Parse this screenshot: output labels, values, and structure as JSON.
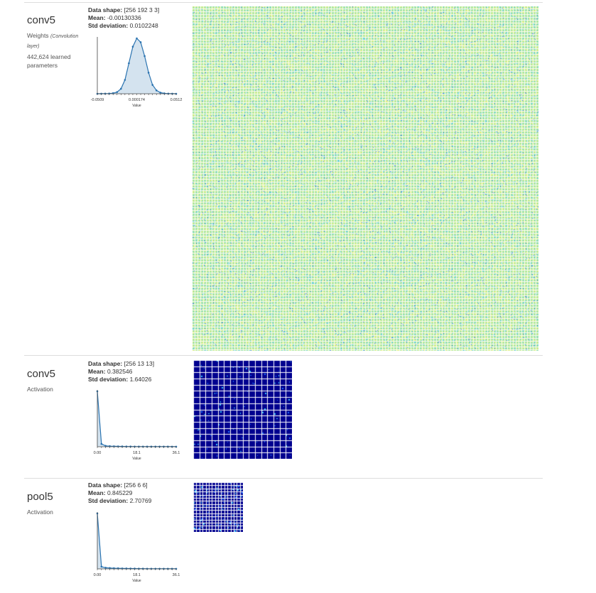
{
  "layers": [
    {
      "name": "conv5",
      "type": "Weights",
      "type_note": "(Convolution layer)",
      "params": "442,624 learned parameters",
      "stats": {
        "shape_label": "Data shape:",
        "shape": "[256 192 3 3]",
        "mean_label": "Mean:",
        "mean": "-0.00130336",
        "std_label": "Std deviation:",
        "std": "0.0102248"
      },
      "hist": {
        "ticks": [
          "-0.0509",
          "0.000174",
          "0.0512"
        ],
        "xlabel": "Value",
        "values": [
          0,
          0.001,
          0.002,
          0.004,
          0.01,
          0.03,
          0.09,
          0.25,
          0.55,
          0.85,
          1.0,
          0.93,
          0.68,
          0.38,
          0.16,
          0.06,
          0.02,
          0.007,
          0.003,
          0.001,
          0
        ]
      },
      "colors": {
        "base": "#a8e8a0",
        "accent": "#e8f080",
        "cyan": "#60d0e8",
        "blue": "#2060e0"
      }
    },
    {
      "name": "conv5",
      "type": "Activation",
      "stats": {
        "shape_label": "Data shape:",
        "shape": "[256 13 13]",
        "mean_label": "Mean:",
        "mean": "0.382546",
        "std_label": "Std deviation:",
        "std": "1.64026"
      },
      "hist": {
        "ticks": [
          "0.00",
          "18.1",
          "36.1"
        ],
        "xlabel": "Value",
        "values": [
          1.0,
          0.05,
          0.015,
          0.01,
          0.008,
          0.006,
          0.005,
          0.004,
          0.004,
          0.003,
          0.003,
          0.003,
          0.002,
          0.002,
          0.002,
          0.002,
          0.002,
          0.002,
          0.001,
          0.001
        ]
      },
      "grid_cells": 16
    },
    {
      "name": "pool5",
      "type": "Activation",
      "stats": {
        "shape_label": "Data shape:",
        "shape": "[256 6 6]",
        "mean_label": "Mean:",
        "mean": "0.845229",
        "std_label": "Std deviation:",
        "std": "2.70769"
      },
      "hist": {
        "ticks": [
          "0.00",
          "18.1",
          "36.1"
        ],
        "xlabel": "Value",
        "values": [
          1.0,
          0.04,
          0.02,
          0.015,
          0.012,
          0.01,
          0.008,
          0.007,
          0.006,
          0.005,
          0.004,
          0.004,
          0.003,
          0.003,
          0.003,
          0.002,
          0.002,
          0.002,
          0.002,
          0.001
        ]
      },
      "grid_cells": 16
    }
  ]
}
